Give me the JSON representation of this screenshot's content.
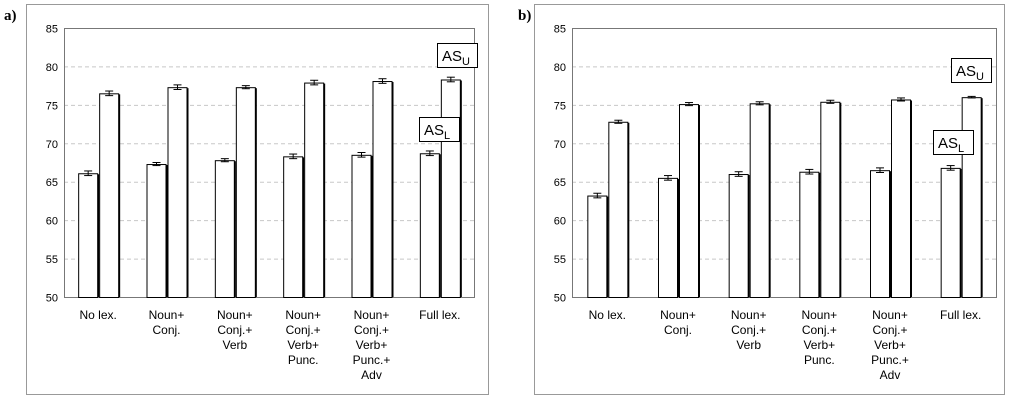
{
  "chart_data": [
    {
      "type": "bar",
      "panel_label": "a)",
      "categories": [
        [
          "No lex."
        ],
        [
          "Noun+",
          "Conj."
        ],
        [
          "Noun+",
          "Conj.+",
          "Verb"
        ],
        [
          "Noun+",
          "Conj.+",
          "Verb+",
          "Punc."
        ],
        [
          "Noun+",
          "Conj.+",
          "Verb+",
          "Punc.+",
          "Adv"
        ],
        [
          "Full lex."
        ]
      ],
      "series": [
        {
          "name": "AS_L",
          "label_main": "AS",
          "label_sub": "L",
          "values": [
            66.1,
            67.3,
            67.8,
            68.3,
            68.5,
            68.7
          ],
          "errors": [
            0.3,
            0.2,
            0.2,
            0.3,
            0.3,
            0.3
          ]
        },
        {
          "name": "AS_U",
          "label_main": "AS",
          "label_sub": "U",
          "values": [
            76.5,
            77.3,
            77.3,
            77.9,
            78.1,
            78.3
          ],
          "errors": [
            0.3,
            0.3,
            0.2,
            0.3,
            0.3,
            0.3
          ]
        }
      ],
      "yticks": [
        "50",
        "55",
        "60",
        "65",
        "70",
        "75",
        "80",
        "85"
      ],
      "ylim": [
        50,
        85
      ],
      "grid": true,
      "legend_placement": "inline labels near series (AS_U top-right, AS_L right-middle)"
    },
    {
      "type": "bar",
      "panel_label": "b)",
      "categories": [
        [
          "No lex."
        ],
        [
          "Noun+",
          "Conj."
        ],
        [
          "Noun+",
          "Conj.+",
          "Verb"
        ],
        [
          "Noun+",
          "Conj.+",
          "Verb+",
          "Punc."
        ],
        [
          "Noun+",
          "Conj.+",
          "Verb+",
          "Punc.+",
          "Adv"
        ],
        [
          "Full lex."
        ]
      ],
      "series": [
        {
          "name": "AS_L",
          "label_main": "AS",
          "label_sub": "L",
          "values": [
            63.2,
            65.5,
            66.0,
            66.3,
            66.5,
            66.8
          ],
          "errors": [
            0.3,
            0.3,
            0.3,
            0.3,
            0.3,
            0.3
          ]
        },
        {
          "name": "AS_U",
          "label_main": "AS",
          "label_sub": "U",
          "values": [
            72.8,
            75.1,
            75.2,
            75.4,
            75.7,
            76.0
          ],
          "errors": [
            0.2,
            0.2,
            0.2,
            0.2,
            0.2,
            0.1
          ]
        }
      ],
      "yticks": [
        "50",
        "55",
        "60",
        "65",
        "70",
        "75",
        "80",
        "85"
      ],
      "ylim": [
        50,
        85
      ],
      "grid": true,
      "legend_placement": "inline labels near series (AS_U top-right, AS_L right-middle)"
    }
  ]
}
